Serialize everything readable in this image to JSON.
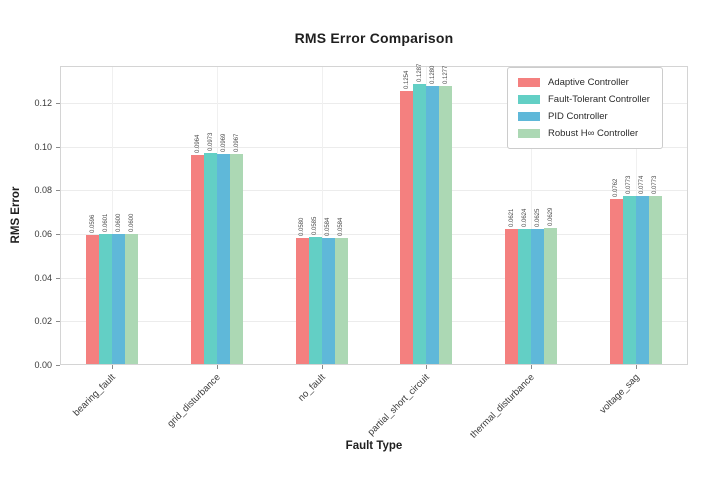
{
  "title": "RMS Error Comparison",
  "chart_data": {
    "type": "bar",
    "title": "RMS Error Comparison",
    "xlabel": "Fault Type",
    "ylabel": "RMS Error",
    "categories": [
      "bearing_fault",
      "grid_disturbance",
      "no_fault",
      "partial_short_circuit",
      "thermal_disturbance",
      "voltage_sag"
    ],
    "series": [
      {
        "name": "Adaptive Controller",
        "color": "#F4807F",
        "values": [
          0.0596,
          0.0964,
          0.058,
          0.1254,
          0.0621,
          0.0762
        ]
      },
      {
        "name": "Fault-Tolerant Controller",
        "color": "#63CFC5",
        "values": [
          0.0601,
          0.0973,
          0.0585,
          0.1287,
          0.0624,
          0.0773
        ]
      },
      {
        "name": "PID Controller",
        "color": "#5FB8D9",
        "values": [
          0.06,
          0.0969,
          0.0584,
          0.128,
          0.0625,
          0.0774
        ]
      },
      {
        "name": "Robust H∞ Controller",
        "color": "#ACD8B4",
        "values": [
          0.06,
          0.0967,
          0.0584,
          0.1277,
          0.0629,
          0.0773
        ]
      }
    ],
    "yticks": [
      0.0,
      0.02,
      0.04,
      0.06,
      0.08,
      0.1,
      0.12
    ],
    "ytick_labels": [
      "0.00",
      "0.02",
      "0.04",
      "0.06",
      "0.08",
      "0.10",
      "0.12"
    ],
    "ylim": [
      0,
      0.137
    ],
    "grid": true,
    "legend_position": "upper right",
    "bar_value_labels": true,
    "bar_label_decimals": 4,
    "colors": {
      "grid": "#ECECEC",
      "plot_border": "#D4D4D4",
      "text": "#262626"
    }
  }
}
